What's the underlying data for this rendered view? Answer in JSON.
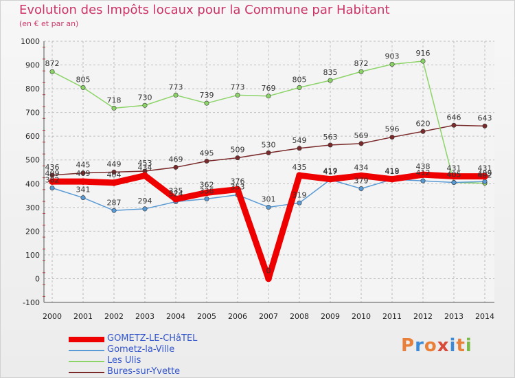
{
  "header": {
    "title": "Evolution des Impôts locaux pour la Commune par Habitant",
    "subtitle": "(en € et par an)"
  },
  "logo": {
    "text": "Proxiti",
    "colors": [
      "#e8803a",
      "#3a8ad8",
      "#e8803a",
      "#d84a3a",
      "#3a8ad8",
      "#e8803a",
      "#7ab84a"
    ]
  },
  "chart_data": {
    "type": "line",
    "x": [
      "2000",
      "2001",
      "2002",
      "2003",
      "2004",
      "2005",
      "2006",
      "2007",
      "2008",
      "2009",
      "2010",
      "2011",
      "2012",
      "2013",
      "2014"
    ],
    "ylim": [
      -100,
      1000
    ],
    "yticks": [
      -100,
      0,
      100,
      200,
      300,
      400,
      500,
      600,
      700,
      800,
      900,
      1000
    ],
    "grid": true,
    "legend": "bottom-left",
    "series": [
      {
        "name": "GOMETZ-LE-CHâTEL",
        "color": "#ee0000",
        "thick": true,
        "values": [
          409,
          409,
          404,
          434,
          335,
          362,
          376,
          0,
          435,
          419,
          434,
          419,
          438,
          431,
          431
        ]
      },
      {
        "name": "Gometz-la-Ville",
        "color": "#5a9bd5",
        "values": [
          382,
          341,
          287,
          294,
          324,
          336,
          353,
          301,
          319,
          417,
          379,
          418,
          412,
          405,
          409
        ]
      },
      {
        "name": "Les Ulis",
        "color": "#8cd468",
        "values": [
          872,
          805,
          718,
          730,
          773,
          739,
          773,
          769,
          805,
          835,
          872,
          903,
          916,
          405,
          402
        ]
      },
      {
        "name": "Bures-sur-Yvette",
        "color": "#7a2a2a",
        "values": [
          436,
          445,
          449,
          453,
          469,
          495,
          509,
          530,
          549,
          563,
          569,
          596,
          620,
          646,
          643
        ]
      }
    ]
  }
}
